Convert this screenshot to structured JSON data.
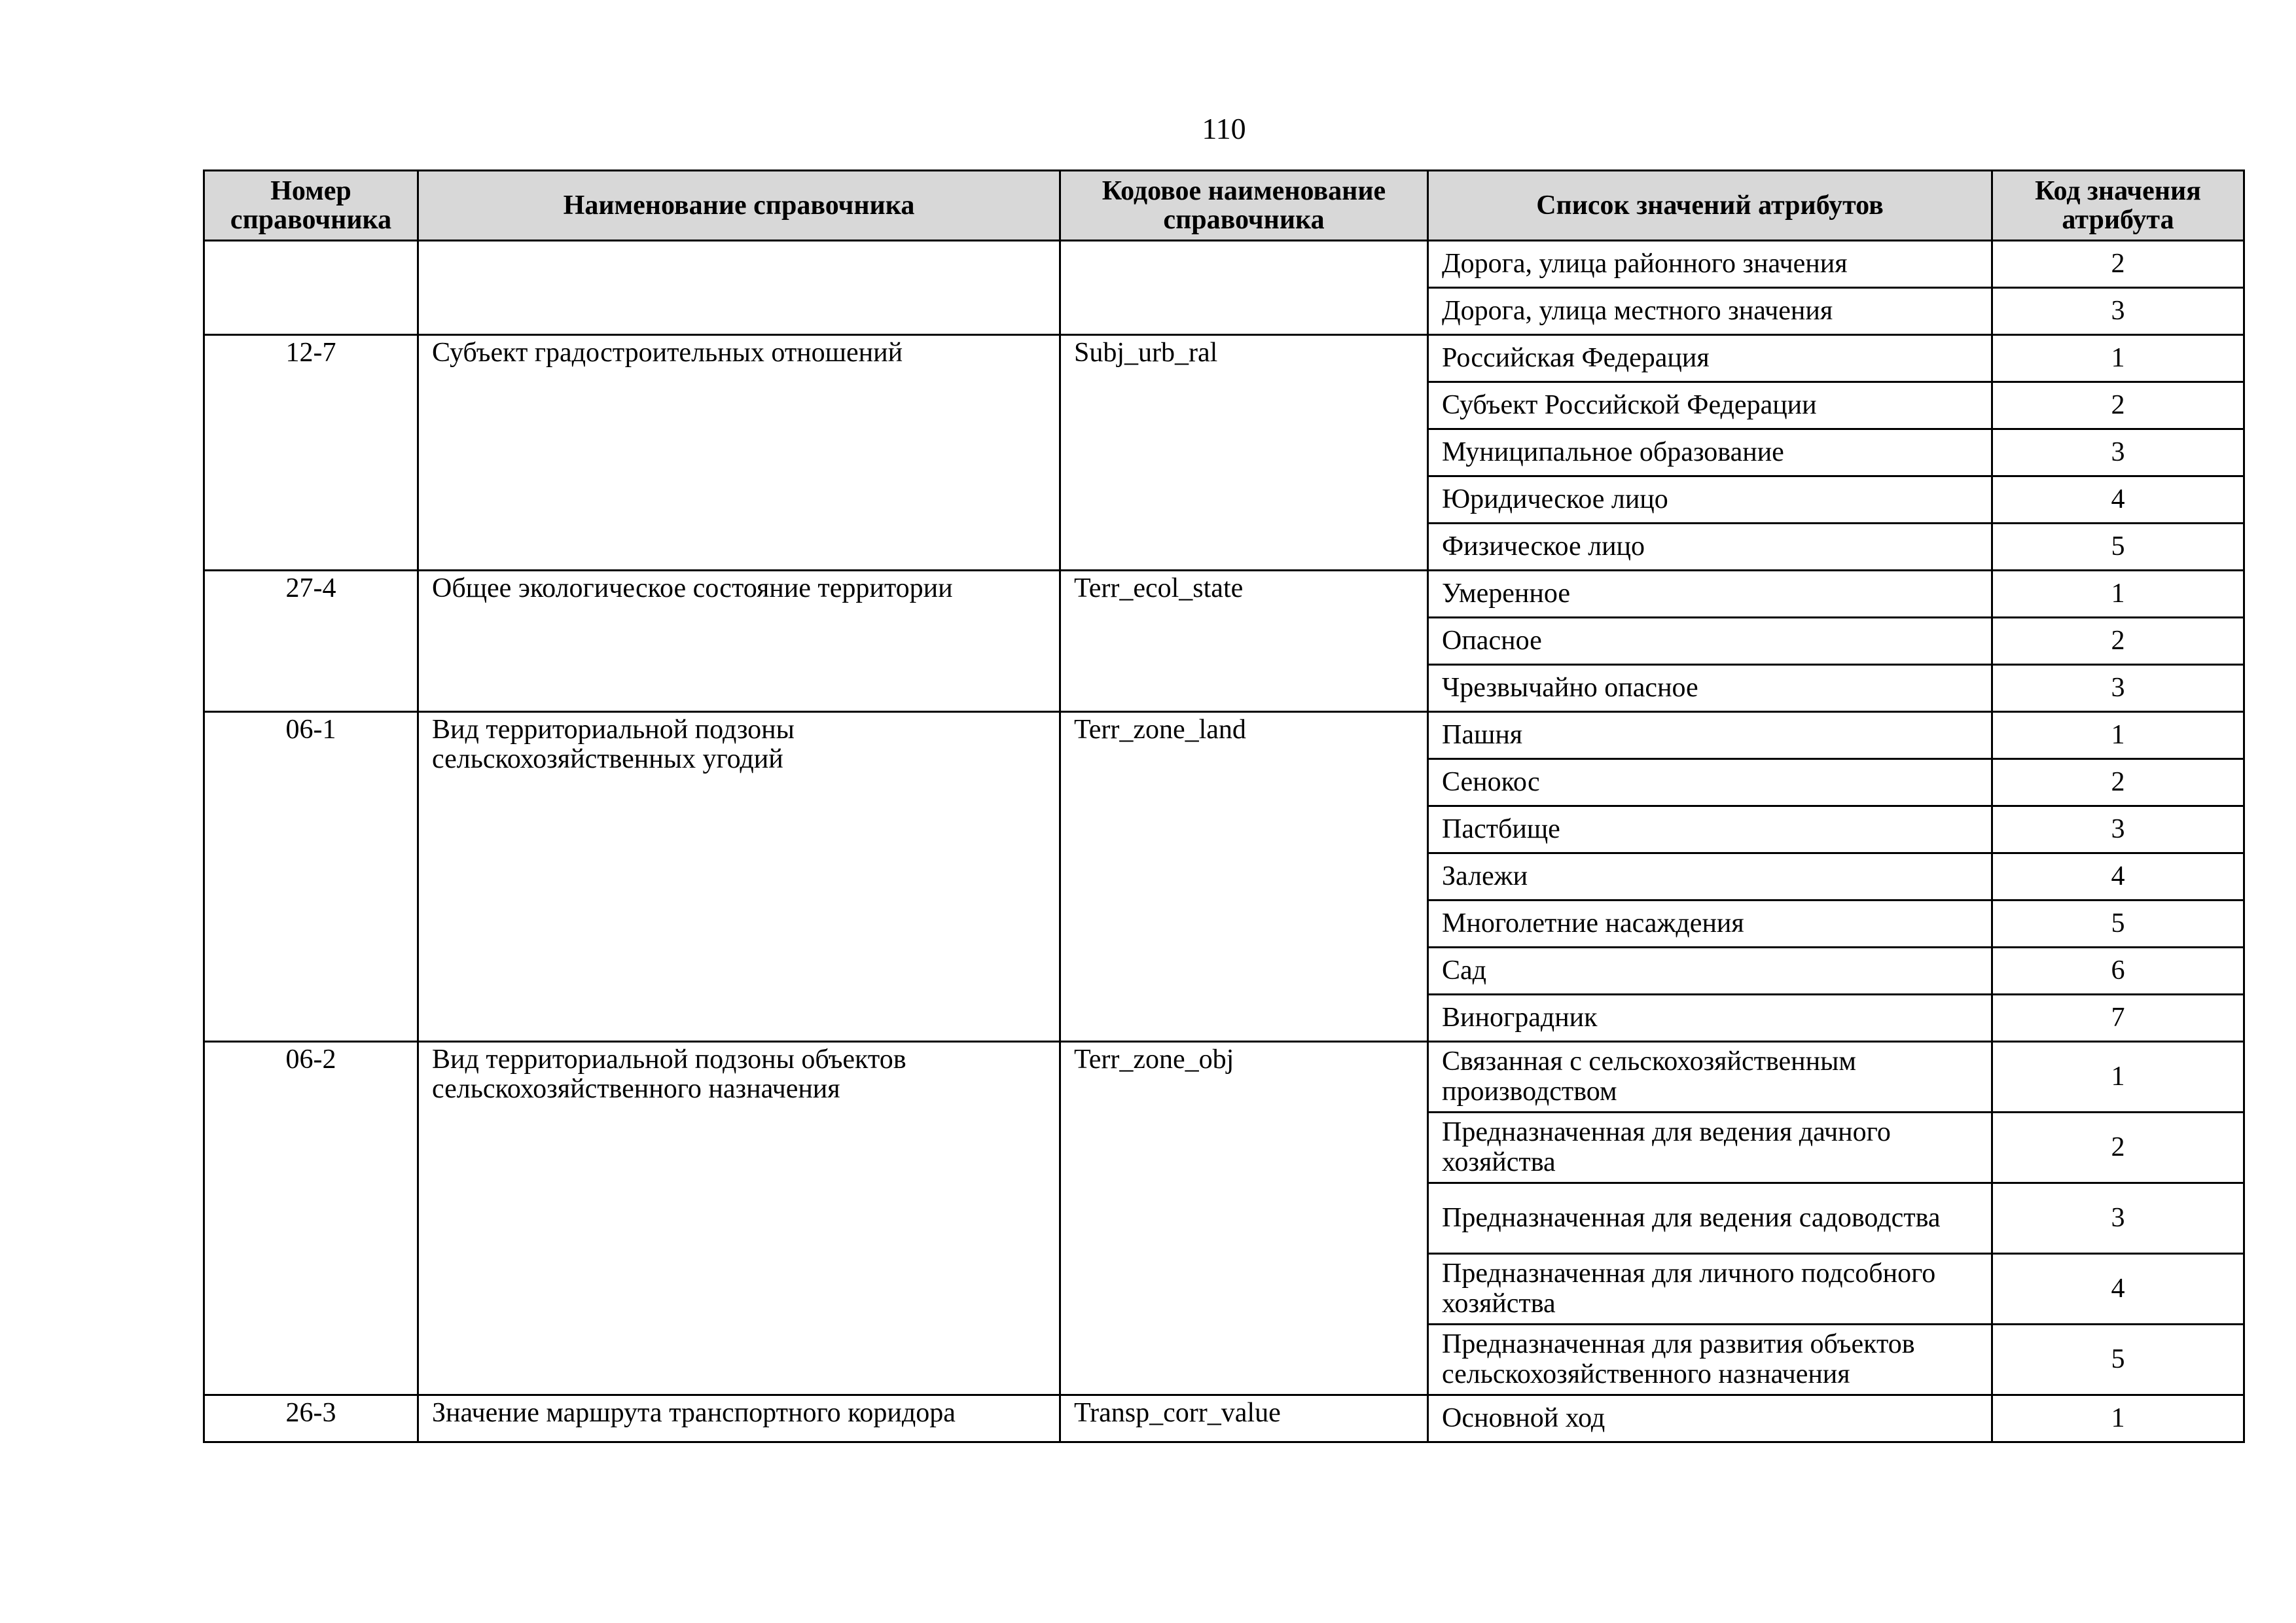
{
  "page_number": "110",
  "table": {
    "headers": [
      "Номер справочника",
      "Наименование справочника",
      "Кодовое наименование справочника",
      "Список значений атрибутов",
      "Код значения атрибута"
    ],
    "groups": [
      {
        "number": "",
        "name": "",
        "code_name": "",
        "values": [
          {
            "label": "Дорога, улица районного значения",
            "code": "2"
          },
          {
            "label": "Дорога, улица местного значения",
            "code": "3"
          }
        ]
      },
      {
        "number": "12-7",
        "name": "Субъект градостроительных отношений",
        "code_name": "Subj_urb_ral",
        "values": [
          {
            "label": "Российская Федерация",
            "code": "1"
          },
          {
            "label": "Субъект Российской Федерации",
            "code": "2"
          },
          {
            "label": "Муниципальное образование",
            "code": "3"
          },
          {
            "label": "Юридическое лицо",
            "code": "4"
          },
          {
            "label": "Физическое лицо",
            "code": "5"
          }
        ]
      },
      {
        "number": "27-4",
        "name": "Общее экологическое состояние территории",
        "code_name": "Terr_ecol_state",
        "values": [
          {
            "label": "Умеренное",
            "code": "1"
          },
          {
            "label": "Опасное",
            "code": "2"
          },
          {
            "label": "Чрезвычайно опасное",
            "code": "3"
          }
        ]
      },
      {
        "number": "06-1",
        "name": "Вид территориальной подзоны сельскохозяйственных угодий",
        "code_name": "Terr_zone_land",
        "values": [
          {
            "label": "Пашня",
            "code": "1"
          },
          {
            "label": "Сенокос",
            "code": "2"
          },
          {
            "label": "Пастбище",
            "code": "3"
          },
          {
            "label": "Залежи",
            "code": "4"
          },
          {
            "label": "Многолетние насаждения",
            "code": "5"
          },
          {
            "label": "Сад",
            "code": "6"
          },
          {
            "label": "Виноградник",
            "code": "7"
          }
        ]
      },
      {
        "number": "06-2",
        "name": "Вид территориальной подзоны объектов сельскохозяйственного назначения",
        "code_name": "Terr_zone_obj",
        "values": [
          {
            "label": "Связанная с сельскохозяйственным производством",
            "code": "1"
          },
          {
            "label": "Предназначенная для ведения дачного хозяйства",
            "code": "2"
          },
          {
            "label": "Предназначенная для ведения садоводства",
            "code": "3"
          },
          {
            "label": "Предназначенная для личного подсобного хозяйства",
            "code": "4"
          },
          {
            "label": "Предназначенная для развития объектов сельскохозяйственного назначения",
            "code": "5"
          }
        ]
      },
      {
        "number": "26-3",
        "name": "Значение маршрута транспортного коридора",
        "code_name": "Transp_corr_value",
        "values": [
          {
            "label": "Основной ход",
            "code": "1"
          }
        ]
      }
    ]
  }
}
